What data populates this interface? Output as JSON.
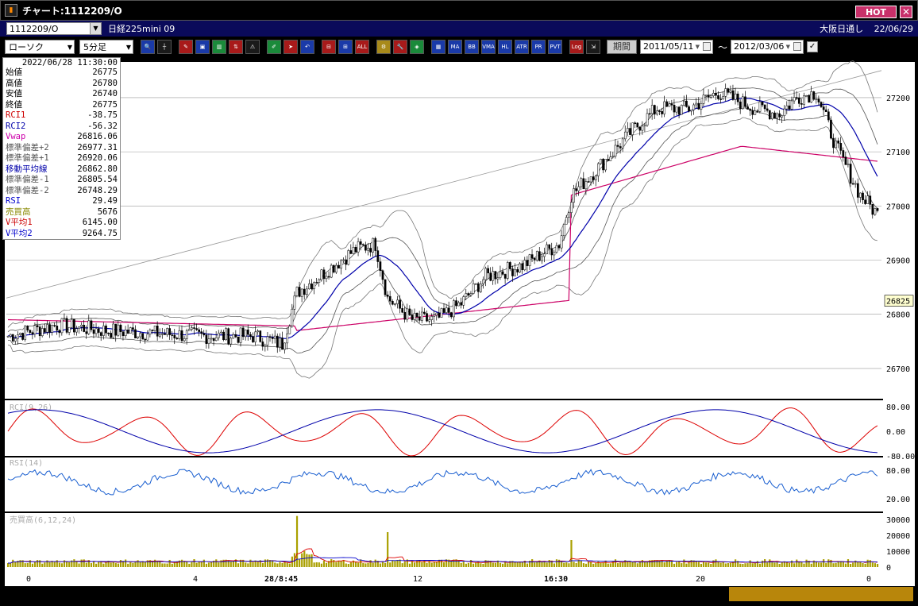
{
  "window": {
    "title": "チャート:1112209/O",
    "hot_label": "HOT",
    "close_label": "✕"
  },
  "symbol": {
    "code": "1112209/O",
    "name": "日経225mini 09",
    "market": "大阪日通し",
    "date": "22/06/29"
  },
  "toolbar": {
    "chart_type": "ローソク",
    "timeframe": "5分足",
    "buttons": [
      "Q",
      "",
      "",
      "",
      "",
      "",
      "",
      "",
      "",
      "",
      "",
      "",
      "",
      "",
      "",
      "",
      "ALL",
      "",
      "",
      "",
      "",
      "",
      "MA",
      "BB",
      "VMA",
      "HL",
      "ATR",
      "PR",
      "PVT",
      "Log",
      ""
    ],
    "period_label": "期間",
    "date_from": "2011/05/11",
    "date_to": "2012/03/06",
    "tilde": "〜"
  },
  "info": {
    "datetime": "2022/06/28  11:30:00",
    "rows": [
      {
        "label": "始値",
        "value": "26775",
        "color": "#000000"
      },
      {
        "label": "高値",
        "value": "26780",
        "color": "#000000"
      },
      {
        "label": "安値",
        "value": "26740",
        "color": "#000000"
      },
      {
        "label": "終値",
        "value": "26775",
        "color": "#000000"
      },
      {
        "label": "RCI1",
        "value": "-38.75",
        "color": "#cc0000"
      },
      {
        "label": "RCI2",
        "value": "-56.32",
        "color": "#0000aa"
      },
      {
        "label": "Vwap",
        "value": "26816.06",
        "color": "#cc00aa"
      },
      {
        "label": "標準偏差+2",
        "value": "26977.31",
        "color": "#555555"
      },
      {
        "label": "標準偏差+1",
        "value": "26920.06",
        "color": "#555555"
      },
      {
        "label": "移動平均線",
        "value": "26862.80",
        "color": "#0000aa"
      },
      {
        "label": "標準偏差-1",
        "value": "26805.54",
        "color": "#555555"
      },
      {
        "label": "標準偏差-2",
        "value": "26748.29",
        "color": "#555555"
      },
      {
        "label": "RSI",
        "value": "29.49",
        "color": "#0000cc"
      },
      {
        "label": "売買高",
        "value": "5676",
        "color": "#888800"
      },
      {
        "label": "V平均1",
        "value": "6145.00",
        "color": "#cc0000"
      },
      {
        "label": "V平均2",
        "value": "9264.75",
        "color": "#0000cc"
      }
    ]
  },
  "price_axis": {
    "labels": [
      "27200",
      "27100",
      "27000",
      "26900",
      "26800",
      "26700"
    ],
    "values": [
      27200,
      27100,
      27000,
      26900,
      26800,
      26700
    ],
    "current": "26825",
    "current_value": 26825
  },
  "panels": {
    "rci_label": "RCI(9,26)",
    "rci_ticks": [
      "80.00",
      "0.00",
      "-80.00"
    ],
    "rsi_label": "RSI(14)",
    "rsi_ticks": [
      "80.00",
      "20.00"
    ],
    "vol_label": "売買高(6,12,24)",
    "vol_ticks": [
      "30000",
      "20000",
      "10000",
      "0"
    ]
  },
  "time_axis": {
    "labels": [
      "0",
      "4",
      "28/8:45",
      "12",
      "16:30",
      "20",
      "0"
    ]
  },
  "colors": {
    "candle_up": "#ffffff",
    "candle_down": "#000000",
    "ma": "#0000aa",
    "vwap": "#cc0066",
    "band": "#666666",
    "rci1": "#dd0000",
    "rci2": "#0000aa",
    "rsi": "#1a5fd0",
    "volume": "#aaa000",
    "vol_avg1": "#dd0000",
    "vol_avg2": "#0000cc"
  }
}
